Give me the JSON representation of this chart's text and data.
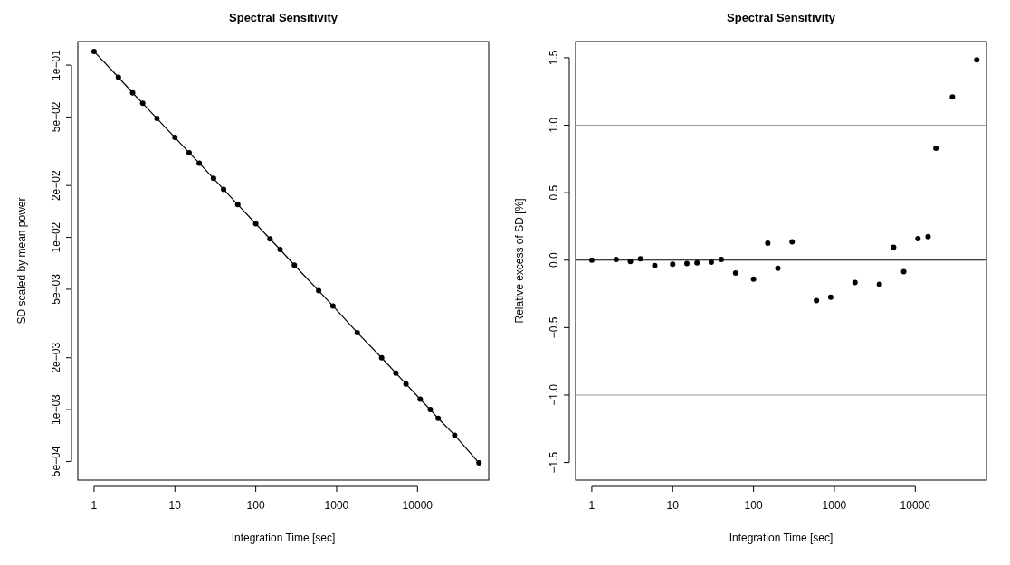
{
  "chart_data": [
    {
      "type": "line",
      "title": "Spectral Sensitivity",
      "xlabel": "Integration Time [sec]",
      "ylabel": "SD scaled by mean power",
      "log": "xy",
      "marker": "circle",
      "line_style": "solid",
      "grid": false,
      "x": [
        1,
        2,
        3,
        4,
        6,
        10,
        15,
        20,
        30,
        40,
        60,
        100,
        150,
        200,
        300,
        600,
        900,
        1800,
        3600,
        5400,
        7200,
        10800,
        14400,
        18000,
        28800,
        57600
      ],
      "series": [
        {
          "color": "#000000",
          "values": [
            0.12,
            0.085,
            0.069,
            0.06,
            0.049,
            0.038,
            0.031,
            0.027,
            0.022,
            0.019,
            0.0155,
            0.012,
            0.0098,
            0.0085,
            0.0069,
            0.0049,
            0.004,
            0.0028,
            0.002,
            0.00163,
            0.00141,
            0.00115,
            0.001,
            0.00089,
            0.00071,
            0.00049
          ]
        }
      ],
      "xlim": [
        0.63,
        76000
      ],
      "xticks": [
        1,
        10,
        100,
        1000,
        10000
      ],
      "ylim": [
        0.00039,
        0.137
      ],
      "yticks": [
        {
          "value": 0.1,
          "label": "1e−01"
        },
        {
          "value": 0.05,
          "label": "5e−02"
        },
        {
          "value": 0.02,
          "label": "2e−02"
        },
        {
          "value": 0.01,
          "label": "1e−02"
        },
        {
          "value": 0.005,
          "label": "5e−03"
        },
        {
          "value": 0.002,
          "label": "2e−03"
        },
        {
          "value": 0.001,
          "label": "1e−03"
        },
        {
          "value": 0.0005,
          "label": "5e−04"
        }
      ]
    },
    {
      "type": "scatter",
      "title": "Spectral Sensitivity",
      "xlabel": "Integration Time [sec]",
      "ylabel": "Relative excess of SD [%]",
      "log": "x",
      "marker": "circle",
      "grid": false,
      "x": [
        1,
        2,
        3,
        4,
        6,
        10,
        15,
        20,
        30,
        40,
        60,
        100,
        150,
        200,
        300,
        600,
        900,
        1800,
        3600,
        5400,
        7200,
        10800,
        14400,
        18000,
        28800,
        57600
      ],
      "series": [
        {
          "color": "#000000",
          "values": [
            0,
            0.005,
            -0.01,
            0.01,
            -0.04,
            -0.03,
            -0.025,
            -0.02,
            -0.015,
            0.005,
            -0.095,
            -0.14,
            0.125,
            -0.06,
            0.135,
            -0.3,
            -0.275,
            -0.165,
            -0.18,
            0.095,
            -0.085,
            0.16,
            0.175,
            0.83,
            1.21,
            1.485
          ]
        }
      ],
      "xlim": [
        0.63,
        76000
      ],
      "xticks": [
        1,
        10,
        100,
        1000,
        10000
      ],
      "ylim": [
        -1.63,
        1.62
      ],
      "yticks": [
        {
          "value": -1.5,
          "label": "−1.5"
        },
        {
          "value": -1,
          "label": "−1.0"
        },
        {
          "value": -0.5,
          "label": "−0.5"
        },
        {
          "value": 0,
          "label": "0.0"
        },
        0.5,
        {
          "value": 1,
          "label": "1.0"
        },
        1.5
      ],
      "ref_lines": [
        {
          "axis": "y",
          "value": 1,
          "color": "#999999"
        },
        {
          "axis": "y",
          "value": 0,
          "color": "#000000"
        },
        {
          "axis": "y",
          "value": -1,
          "color": "#999999"
        }
      ]
    }
  ]
}
